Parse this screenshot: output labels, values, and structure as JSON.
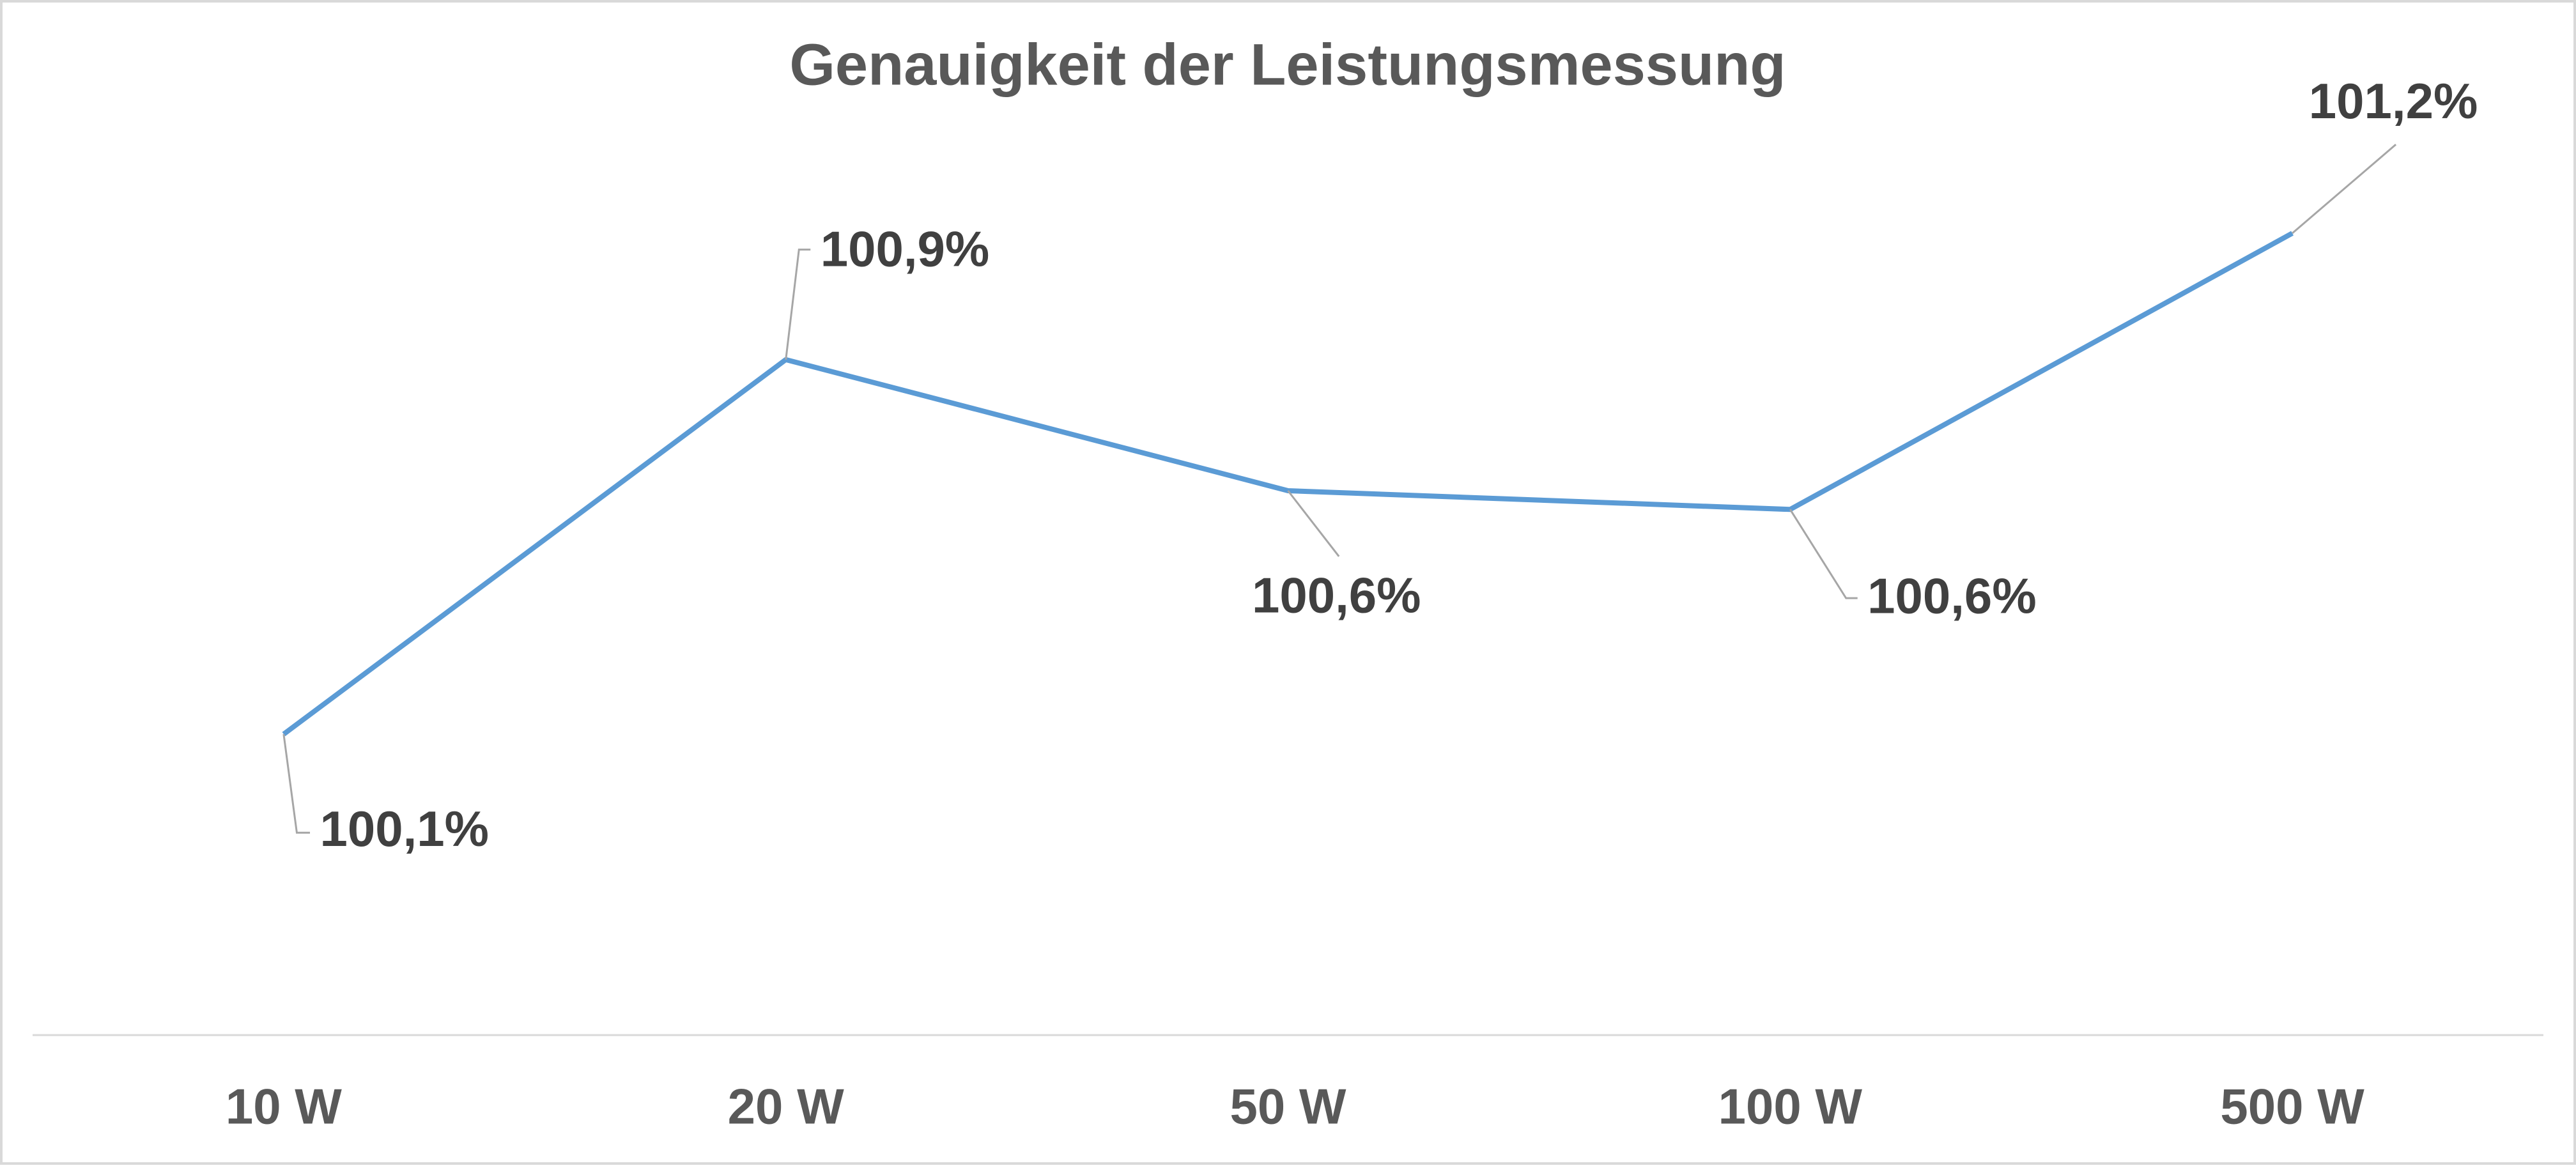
{
  "chart_data": {
    "type": "line",
    "title": "Genauigkeit der Leistungsmessung",
    "categories": [
      "10 W",
      "20 W",
      "50 W",
      "100 W",
      "500 W"
    ],
    "series": [
      {
        "color": "#5b9bd5",
        "values": [
          100.1,
          100.9,
          100.62,
          100.58,
          101.17
        ],
        "value_labels": [
          "100,1%",
          "100,9%",
          "100,6%",
          "100,6%",
          "101,2%"
        ]
      }
    ]
  }
}
